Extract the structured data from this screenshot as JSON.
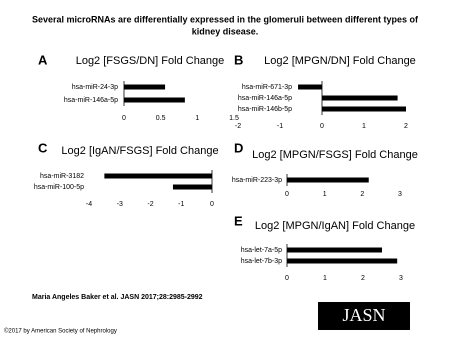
{
  "title": "Several microRNAs are differentially expressed in the glomeruli between different types of",
  "title_line2": "kidney disease.",
  "citation": "Maria Angeles Baker et al. JASN 2017;28:2985-2992",
  "copyright": "©2017 by American Society of Nephrology",
  "logo": "JASN",
  "chart_data": [
    {
      "type": "hbar",
      "panel": "A",
      "title": "Log2 [FSGS/DN] Fold Change",
      "categories": [
        "hsa-miR-24-3p",
        "hsa-miR-146a-5p"
      ],
      "values": [
        0.56,
        0.83
      ],
      "color": "#000000",
      "xlim": [
        0,
        1.5
      ],
      "xticks": [
        0,
        0.5,
        1,
        1.5
      ]
    },
    {
      "type": "hbar",
      "panel": "B",
      "title": "Log2 [MPGN/DN] Fold Change",
      "categories": [
        "hsa-miR-671-3p",
        "hsa-miR-146a-5p",
        "hsa-miR-146b-5p"
      ],
      "values": [
        -0.57,
        1.8,
        2.0
      ],
      "color": "#000000",
      "xlim": [
        -2,
        2
      ],
      "xticks": [
        -2,
        -1,
        0,
        1,
        2
      ]
    },
    {
      "type": "hbar",
      "panel": "C",
      "title": "Log2 [IgAN/FSGS] Fold Change",
      "categories": [
        "hsa-miR-3182",
        "hsa-miR-100-5p"
      ],
      "values": [
        -3.5,
        -1.27
      ],
      "color": "#000000",
      "xlim": [
        -4,
        0
      ],
      "xticks": [
        -4,
        -3,
        -2,
        -1,
        0
      ]
    },
    {
      "type": "hbar",
      "panel": "D",
      "title": "Log2 [MPGN/FSGS] Fold Change",
      "categories": [
        "hsa-miR-223-3p"
      ],
      "values": [
        2.17
      ],
      "color": "#000000",
      "xlim": [
        0,
        3
      ],
      "xticks": [
        0,
        1,
        2,
        3
      ]
    },
    {
      "type": "hbar",
      "panel": "E",
      "title": "Log2 [MPGN/IgAN] Fold Change",
      "categories": [
        "hsa-let-7a-5p",
        "hsa-let-7b-3p"
      ],
      "values": [
        2.5,
        2.9
      ],
      "color": "#000000",
      "xlim": [
        0,
        3
      ],
      "xticks": [
        0,
        1,
        2,
        3
      ]
    }
  ]
}
